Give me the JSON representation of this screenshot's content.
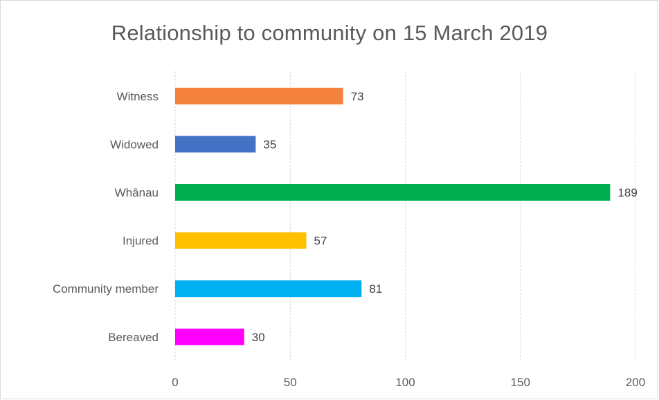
{
  "chart_data": {
    "type": "bar",
    "orientation": "horizontal",
    "title": "Relationship to community on 15 March 2019",
    "xlabel": "",
    "ylabel": "",
    "categories": [
      "Witness",
      "Widowed",
      "Whānau",
      "Injured",
      "Community member",
      "Bereaved"
    ],
    "values": [
      73,
      35,
      189,
      57,
      81,
      30
    ],
    "colors": [
      "#f4823e",
      "#4472c4",
      "#00b050",
      "#ffc000",
      "#00b0f0",
      "#ff00ff"
    ],
    "xlim": [
      0,
      200
    ],
    "xticks": [
      0,
      50,
      100,
      150,
      200
    ],
    "grid": "vertical-dashed",
    "data_labels": true,
    "legend": "none"
  }
}
